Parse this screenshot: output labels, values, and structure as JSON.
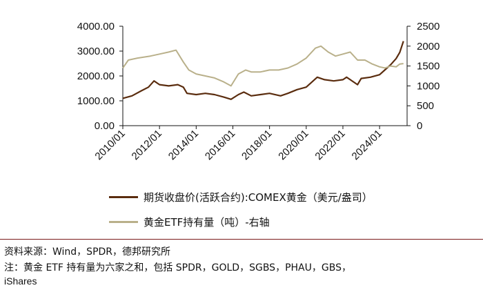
{
  "chart_data": {
    "type": "line",
    "title": "",
    "x_ticks": [
      "2010/01",
      "2012/01",
      "2014/01",
      "2016/01",
      "2018/01",
      "2020/01",
      "2022/01",
      "2024/01"
    ],
    "left_axis": {
      "ticks": [
        "0.00",
        "1000.00",
        "2000.00",
        "3000.00",
        "4000.00"
      ],
      "ylim": [
        0,
        4000
      ]
    },
    "right_axis": {
      "ticks": [
        "0",
        "500",
        "1000",
        "1500",
        "2000",
        "2500"
      ],
      "ylim": [
        0,
        2500
      ]
    },
    "grid": false,
    "legend_position": "bottom",
    "series": [
      {
        "name": "期货收盘价(活跃合约):COMEX黄金（美元/盎司）",
        "axis": "left",
        "color": "#5a2c0e",
        "x": [
          2010.0,
          2010.5,
          2011.0,
          2011.4,
          2011.7,
          2012.0,
          2012.5,
          2013.0,
          2013.3,
          2013.5,
          2014.0,
          2014.5,
          2015.0,
          2015.5,
          2015.9,
          2016.3,
          2016.6,
          2017.0,
          2017.5,
          2018.0,
          2018.6,
          2019.0,
          2019.5,
          2020.0,
          2020.6,
          2021.0,
          2021.5,
          2022.0,
          2022.2,
          2022.8,
          2023.0,
          2023.5,
          2024.0,
          2024.3,
          2024.6,
          2024.9,
          2025.1,
          2025.3
        ],
        "values": [
          1100,
          1200,
          1400,
          1550,
          1800,
          1650,
          1600,
          1650,
          1550,
          1300,
          1250,
          1300,
          1250,
          1150,
          1060,
          1250,
          1350,
          1200,
          1250,
          1300,
          1200,
          1300,
          1450,
          1550,
          1950,
          1850,
          1800,
          1850,
          1950,
          1650,
          1900,
          1950,
          2050,
          2250,
          2450,
          2700,
          2950,
          3400
        ]
      },
      {
        "name": "黄金ETF持有量（吨）-右轴",
        "axis": "right",
        "color": "#b9b08a",
        "x": [
          2010.0,
          2010.3,
          2010.8,
          2011.5,
          2012.0,
          2012.5,
          2012.9,
          2013.3,
          2013.6,
          2014.0,
          2014.5,
          2015.0,
          2015.5,
          2015.9,
          2016.3,
          2016.7,
          2017.0,
          2017.5,
          2018.0,
          2018.5,
          2019.0,
          2019.5,
          2020.0,
          2020.5,
          2020.8,
          2021.2,
          2021.6,
          2022.0,
          2022.4,
          2022.8,
          2023.2,
          2023.6,
          2024.0,
          2024.3,
          2024.6,
          2024.9,
          2025.1,
          2025.3
        ],
        "values": [
          1450,
          1650,
          1700,
          1750,
          1800,
          1850,
          1900,
          1600,
          1400,
          1300,
          1250,
          1200,
          1100,
          1000,
          1300,
          1400,
          1350,
          1350,
          1400,
          1400,
          1450,
          1550,
          1700,
          1950,
          2000,
          1850,
          1750,
          1800,
          1850,
          1650,
          1650,
          1550,
          1480,
          1450,
          1500,
          1480,
          1550,
          1560
        ]
      }
    ]
  },
  "legend": [
    {
      "label": "期货收盘价(活跃合约):COMEX黄金（美元/盎司）",
      "color": "#5a2c0e"
    },
    {
      "label": "黄金ETF持有量（吨）-右轴",
      "color": "#b9b08a"
    }
  ],
  "footer": {
    "source": "资料来源：Wind，SPDR，德邦研究所",
    "note_line1": "注：黄金 ETF 持有量为六家之和，包括 SPDR，GOLD，SGBS，PHAU，GBS，",
    "note_line2": "iShares"
  }
}
